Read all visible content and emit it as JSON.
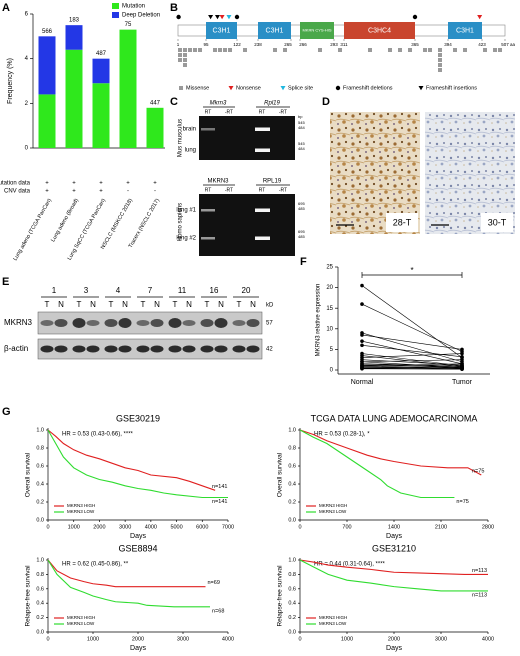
{
  "panel_labels": [
    "A",
    "B",
    "C",
    "D",
    "E",
    "F",
    "G"
  ],
  "panel_a": {
    "ylabel": "Frequency (%)",
    "ylim": [
      0,
      6
    ],
    "yticks": [
      0,
      2,
      4,
      6
    ],
    "categories": [
      "Lung adeno (TCGA PanCan)",
      "Lung adeno (Broad)",
      "Lung SqCC (TCGA PanCan)",
      "NSCLC (MSKCC 2018)",
      "Tracerx (NSCLC 2017)"
    ],
    "series": [
      {
        "name": "Mutation",
        "color": "#2fe81c",
        "values": [
          2.4,
          4.4,
          2.9,
          5.3,
          1.8
        ]
      },
      {
        "name": "Deep Deletion",
        "color": "#2337e6",
        "values": [
          2.6,
          1.1,
          1.1,
          0,
          0
        ]
      }
    ],
    "sample_counts": [
      566,
      183,
      487,
      75,
      447
    ],
    "rows": [
      {
        "name": "Mutation data",
        "marks": [
          "+",
          "+",
          "+",
          "+",
          "+"
        ]
      },
      {
        "name": "CNV data",
        "marks": [
          "+",
          "+",
          "+",
          "-",
          "-"
        ]
      }
    ]
  },
  "panel_b": {
    "ticks": [
      1,
      95,
      122,
      238,
      265,
      266,
      293,
      311,
      365,
      394,
      423,
      507
    ],
    "unit": "aa",
    "domains": [
      {
        "label": "C3H1",
        "start": 95,
        "end": 122,
        "color": "#2a8fc6"
      },
      {
        "label": "C3H1",
        "start": 238,
        "end": 265,
        "color": "#2a8fc6"
      },
      {
        "label": "MKRN CYS-HIS",
        "start": 266,
        "end": 293,
        "color": "#4aa84a"
      },
      {
        "label": "C3HC4",
        "start": 311,
        "end": 365,
        "color": "#c9452e"
      },
      {
        "label": "C3H1",
        "start": 394,
        "end": 423,
        "color": "#2a8fc6"
      }
    ],
    "mutations": [
      {
        "name": "Missense",
        "shape": "square",
        "color": "#9a9a9a",
        "positions": [
          8,
          15,
          15,
          22,
          30,
          30,
          30,
          45,
          60,
          75,
          101,
          107,
          112,
          118,
          170,
          250,
          262,
          280,
          300,
          330,
          345,
          352,
          360,
          372,
          380,
          385,
          385,
          385,
          385,
          385,
          398,
          410,
          440,
          470,
          490
        ]
      },
      {
        "name": "Nonsense",
        "shape": "triangle",
        "color": "#e02020",
        "positions": [
          109,
          421
        ]
      },
      {
        "name": "Splice site",
        "shape": "triangle",
        "color": "#20b8e0",
        "positions": [
          115
        ]
      },
      {
        "name": "Frameshift deletions",
        "shape": "circle",
        "color": "#000000",
        "positions": [
          3,
          122,
          365
        ]
      },
      {
        "name": "Frameshift insertions",
        "shape": "triangle",
        "color": "#000000",
        "positions": [
          99,
          105
        ]
      }
    ]
  },
  "panel_c": {
    "species": [
      "Mus musculus",
      "Homo sapiens"
    ],
    "lanes": [
      "RT",
      "-RT"
    ],
    "marker_unit": "bp",
    "mouse": {
      "genes": [
        "Mkrn3",
        "Rpl19"
      ],
      "tissues": [
        "brain",
        "lung"
      ],
      "markers": [
        545,
        484
      ]
    },
    "human": {
      "genes": [
        "MKRN3",
        "RPL19"
      ],
      "tissues": [
        "lung #1",
        "lung #2"
      ],
      "markers": [
        695,
        485
      ]
    }
  },
  "panel_d": {
    "images": [
      "28-T",
      "30-T"
    ]
  },
  "panel_e": {
    "samples": [
      1,
      3,
      4,
      7,
      11,
      16,
      20
    ],
    "lanes": [
      "T",
      "N"
    ],
    "size_unit": "kD",
    "proteins": [
      {
        "name": "MKRN3",
        "size": 57
      },
      {
        "name": "β-actin",
        "size": 42
      }
    ]
  },
  "panel_f": {
    "ylabel": "MKRN3 relative expression",
    "ylim": [
      0,
      25
    ],
    "yticks": [
      0,
      5,
      10,
      15,
      20,
      25
    ],
    "categories": [
      "Normal",
      "Tumor"
    ],
    "significance": "*",
    "series": [
      {
        "values": [
          20.5,
          16,
          9,
          8.5,
          7,
          6,
          4,
          3.5,
          3,
          2.5,
          2,
          2,
          1.5,
          1.5,
          1.2,
          1,
          1,
          0.8,
          0.6,
          0.5,
          0.4,
          0.3
        ]
      },
      {
        "values": [
          3,
          4.5,
          2,
          5,
          1.5,
          3.2,
          1,
          0.8,
          4,
          1.2,
          0.6,
          2.5,
          0.5,
          1,
          0.8,
          0.4,
          1.5,
          0.3,
          0.5,
          0.2,
          0.6,
          0.2
        ]
      }
    ]
  },
  "panel_g": {
    "plots": [
      {
        "title": "GSE30219",
        "hr": "HR = 0.53 (0.43-0.66), ****",
        "ylabel": "Overall survival",
        "xlabel": "Days",
        "xlim": [
          0,
          7000
        ],
        "xticks": [
          0,
          1000,
          2000,
          3000,
          4000,
          5000,
          6000,
          7000
        ],
        "ylim": [
          0,
          1
        ],
        "yticks": [
          {
            "value": 0,
            "label": "0.0"
          },
          {
            "value": 0.2,
            "label": "0.2"
          },
          {
            "value": 0.4,
            "label": "0.4"
          },
          {
            "value": 0.6,
            "label": "0.6"
          },
          {
            "value": 0.8,
            "label": "0.8"
          },
          {
            "value": 1,
            "label": "1.0"
          }
        ],
        "series": [
          {
            "name": "MKRN3 HIGH",
            "color": "#e02020",
            "n_label": "n=141",
            "x": [
              0,
              300,
              600,
              1000,
              1500,
              2000,
              2500,
              3000,
              3500,
              4000,
              5000,
              5500,
              6500
            ],
            "y": [
              1,
              0.93,
              0.85,
              0.78,
              0.72,
              0.68,
              0.63,
              0.58,
              0.55,
              0.5,
              0.47,
              0.43,
              0.33
            ]
          },
          {
            "name": "MKRN3 LOW",
            "color": "#2fdc2f",
            "n_label": "n=141",
            "x": [
              0,
              300,
              600,
              1000,
              1500,
              2000,
              2500,
              3000,
              3500,
              4000,
              4500,
              5000,
              6000,
              7000
            ],
            "y": [
              1,
              0.85,
              0.7,
              0.58,
              0.5,
              0.45,
              0.42,
              0.38,
              0.35,
              0.33,
              0.3,
              0.28,
              0.25,
              0.25
            ]
          }
        ]
      },
      {
        "title": "TCGA DATA LUNG ADEMOCARCINOMA",
        "hr": "HR = 0.53 (0.28-1), *",
        "ylabel": "Overall survival",
        "xlabel": "Days",
        "xlim": [
          0,
          2800
        ],
        "xticks": [
          0,
          700,
          1400,
          2100,
          2800
        ],
        "ylim": [
          0,
          1
        ],
        "yticks": [
          {
            "value": 0,
            "label": "0.0"
          },
          {
            "value": 0.2,
            "label": "0.2"
          },
          {
            "value": 0.4,
            "label": "0.4"
          },
          {
            "value": 0.6,
            "label": "0.6"
          },
          {
            "value": 0.8,
            "label": "0.8"
          },
          {
            "value": 1,
            "label": "1.0"
          }
        ],
        "series": [
          {
            "name": "MKRN3 HIGH",
            "color": "#e02020",
            "n_label": "n=75",
            "x": [
              0,
              200,
              400,
              700,
              1000,
              1200,
              1400,
              1800,
              2200,
              2500,
              2700
            ],
            "y": [
              1,
              0.95,
              0.88,
              0.8,
              0.72,
              0.68,
              0.65,
              0.6,
              0.58,
              0.58,
              0.5
            ]
          },
          {
            "name": "MKRN3 LOW",
            "color": "#2fdc2f",
            "n_label": "n=75",
            "x": [
              0,
              200,
              400,
              700,
              1000,
              1200,
              1300,
              1500,
              1800,
              2300
            ],
            "y": [
              1,
              0.92,
              0.85,
              0.7,
              0.55,
              0.45,
              0.38,
              0.3,
              0.25,
              0.25
            ]
          }
        ]
      },
      {
        "title": "GSE8894",
        "hr": "HR = 0.62 (0.45-0.86), **",
        "ylabel": "Relapse-free survival",
        "xlabel": "Days",
        "xlim": [
          0,
          4000
        ],
        "xticks": [
          0,
          1000,
          2000,
          3000,
          4000
        ],
        "ylim": [
          0,
          1
        ],
        "yticks": [
          {
            "value": 0,
            "label": "0.0"
          },
          {
            "value": 0.2,
            "label": "0.2"
          },
          {
            "value": 0.4,
            "label": "0.4"
          },
          {
            "value": 0.6,
            "label": "0.6"
          },
          {
            "value": 0.8,
            "label": "0.8"
          },
          {
            "value": 1,
            "label": "1.0"
          }
        ],
        "series": [
          {
            "name": "MKRN3 HIGH",
            "color": "#e02020",
            "n_label": "n=69",
            "x": [
              0,
              200,
              500,
              800,
              1000,
              1300,
              1500,
              2000,
              2500,
              3000,
              3500
            ],
            "y": [
              1,
              0.85,
              0.75,
              0.7,
              0.67,
              0.65,
              0.63,
              0.63,
              0.63,
              0.63,
              0.63
            ]
          },
          {
            "name": "MKRN3 LOW",
            "color": "#2fdc2f",
            "n_label": "n=68",
            "x": [
              0,
              200,
              500,
              800,
              1000,
              1300,
              1500,
              2000,
              2200,
              2800,
              3600
            ],
            "y": [
              1,
              0.8,
              0.62,
              0.55,
              0.5,
              0.45,
              0.42,
              0.4,
              0.37,
              0.35,
              0.35
            ]
          }
        ]
      },
      {
        "title": "GSE31210",
        "hr": "HR = 0.44 (0.31-0.64), ****",
        "ylabel": "Relapse-free survival",
        "xlabel": "Days",
        "xlim": [
          0,
          4000
        ],
        "xticks": [
          0,
          1000,
          2000,
          3000,
          4000
        ],
        "ylim": [
          0,
          1
        ],
        "yticks": [
          {
            "value": 0,
            "label": "0.0"
          },
          {
            "value": 0.2,
            "label": "0.2"
          },
          {
            "value": 0.4,
            "label": "0.4"
          },
          {
            "value": 0.6,
            "label": "0.6"
          },
          {
            "value": 0.8,
            "label": "0.8"
          },
          {
            "value": 1,
            "label": "1.0"
          }
        ],
        "series": [
          {
            "name": "MKRN3 HIGH",
            "color": "#e02020",
            "n_label": "n=113",
            "x": [
              0,
              300,
              600,
              1000,
              1500,
              2000,
              2500,
              3000,
              3500,
              4000
            ],
            "y": [
              1,
              0.97,
              0.93,
              0.9,
              0.87,
              0.83,
              0.82,
              0.81,
              0.8,
              0.8
            ]
          },
          {
            "name": "MKRN3 LOW",
            "color": "#2fdc2f",
            "n_label": "n=113",
            "x": [
              0,
              300,
              600,
              1000,
              1500,
              2000,
              2500,
              3000,
              3500,
              4000
            ],
            "y": [
              1,
              0.9,
              0.8,
              0.72,
              0.68,
              0.63,
              0.6,
              0.57,
              0.57,
              0.57
            ]
          }
        ]
      }
    ]
  }
}
